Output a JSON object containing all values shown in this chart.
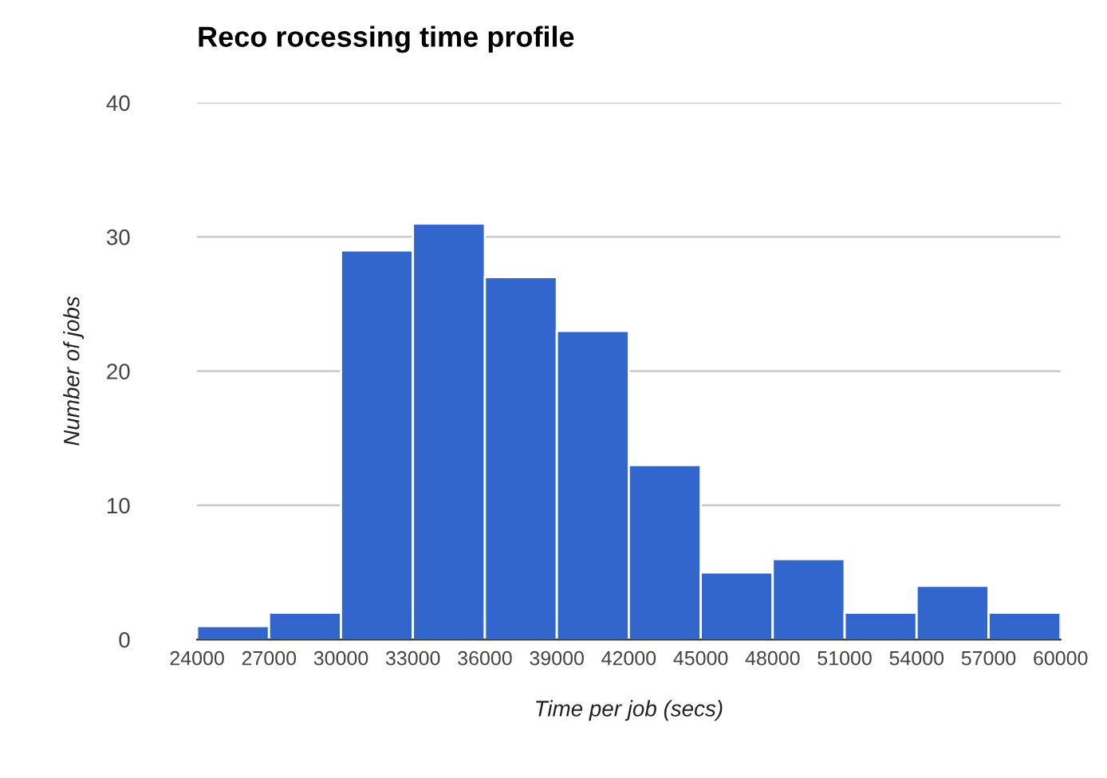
{
  "chart_data": {
    "type": "histogram",
    "title": "Reco rocessing time profile",
    "xlabel": "Time per job (secs)",
    "ylabel": "Number of jobs",
    "bins": [
      24000,
      27000,
      30000,
      33000,
      36000,
      39000,
      42000,
      45000,
      48000,
      51000,
      54000,
      57000,
      60000
    ],
    "values": [
      1,
      2,
      29,
      31,
      27,
      23,
      13,
      5,
      6,
      2,
      4,
      2
    ],
    "color": "#3366cc",
    "xlim": [
      24000,
      60000
    ],
    "xticks": [
      24000,
      27000,
      30000,
      33000,
      36000,
      39000,
      42000,
      45000,
      48000,
      51000,
      54000,
      57000,
      60000
    ],
    "ylim": [
      0,
      40
    ],
    "yticks": [
      0,
      10,
      20,
      30,
      40
    ],
    "grid": "y",
    "legend": false
  }
}
